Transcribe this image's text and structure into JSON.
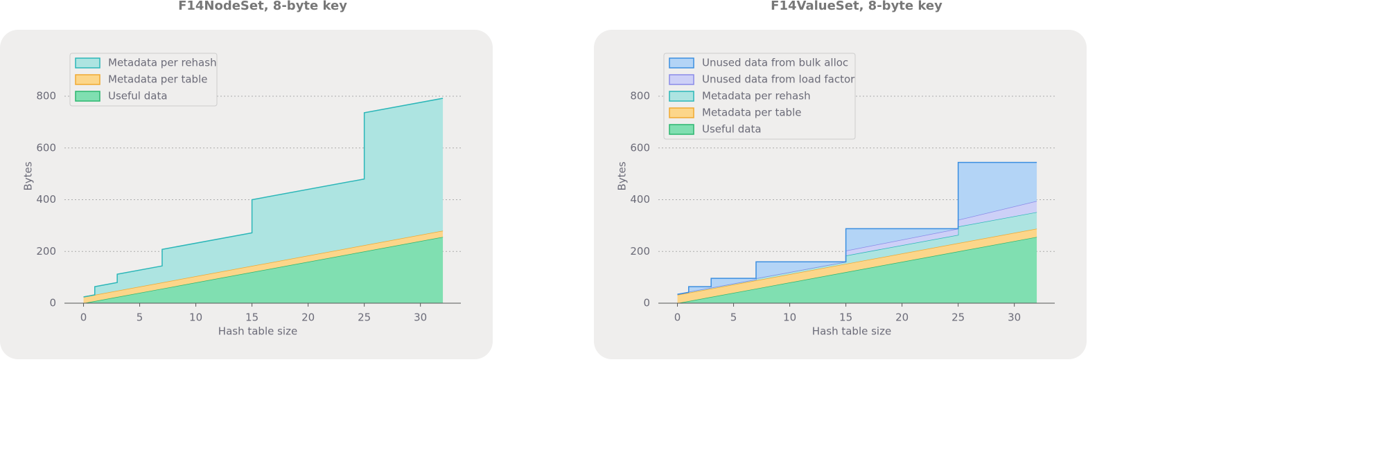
{
  "chart_data": [
    {
      "type": "stacked-area",
      "title": "F14NodeSet, 8-byte key",
      "xlabel": "Hash table size",
      "ylabel": "Bytes",
      "x": [
        0,
        1,
        1,
        3,
        3,
        7,
        7,
        15,
        15,
        25,
        25,
        32
      ],
      "series": [
        {
          "name": "Useful data",
          "color": "#2bb56e",
          "fill": "#80dfb1",
          "values": [
            0,
            8,
            8,
            24,
            24,
            56,
            56,
            120,
            120,
            200,
            200,
            256
          ]
        },
        {
          "name": "Metadata per table",
          "color": "#f0a830",
          "fill": "#fcd68a",
          "values": [
            24,
            24,
            24,
            24,
            24,
            24,
            24,
            24,
            24,
            24,
            24,
            24
          ]
        },
        {
          "name": "Metadata per rehash",
          "color": "#2bb6b8",
          "fill": "#ade4e1",
          "values": [
            0,
            0,
            32,
            32,
            64,
            64,
            128,
            128,
            256,
            256,
            512,
            512
          ]
        }
      ],
      "xlim": [
        -1.7,
        33.6
      ],
      "ylim": [
        0,
        800
      ],
      "xticks": [
        0,
        5,
        10,
        15,
        20,
        25,
        30
      ],
      "yticks": [
        0,
        200,
        400,
        600,
        800
      ],
      "grid": true,
      "legend": "upper left"
    },
    {
      "type": "stacked-area",
      "title": "F14ValueSet, 8-byte key",
      "xlabel": "Hash table size",
      "ylabel": "Bytes",
      "x": [
        0,
        1,
        1,
        3,
        3,
        7,
        7,
        15,
        15,
        25,
        25,
        32
      ],
      "series": [
        {
          "name": "Useful data",
          "color": "#2bb56e",
          "fill": "#80dfb1",
          "values": [
            0,
            8,
            8,
            24,
            24,
            56,
            56,
            120,
            120,
            200,
            200,
            256
          ]
        },
        {
          "name": "Metadata per table",
          "color": "#f0a830",
          "fill": "#fcd68a",
          "values": [
            32,
            32,
            32,
            32,
            32,
            32,
            32,
            32,
            32,
            32,
            32,
            32
          ]
        },
        {
          "name": "Metadata per rehash",
          "color": "#2bb6b8",
          "fill": "#ade4e1",
          "values": [
            2,
            2,
            4,
            4,
            4,
            4,
            8,
            8,
            32,
            32,
            64,
            64
          ]
        },
        {
          "name": "Unused data from load factor",
          "color": "#8a8ae8",
          "fill": "#cdd0f7",
          "values": [
            0,
            0,
            0,
            0,
            0,
            0,
            0,
            0,
            19,
            24,
            26,
            43
          ]
        },
        {
          "name": "Unused data from bulk alloc",
          "color": "#3b8ee0",
          "fill": "#b3d4f6",
          "values": [
            0,
            0,
            20,
            4,
            36,
            4,
            64,
            0,
            85,
            0,
            222,
            149
          ]
        }
      ],
      "xlim": [
        -1.7,
        33.6
      ],
      "ylim": [
        0,
        800
      ],
      "xticks": [
        0,
        5,
        10,
        15,
        20,
        25,
        30
      ],
      "yticks": [
        0,
        200,
        400,
        600,
        800
      ],
      "grid": true,
      "legend": "upper left"
    }
  ]
}
